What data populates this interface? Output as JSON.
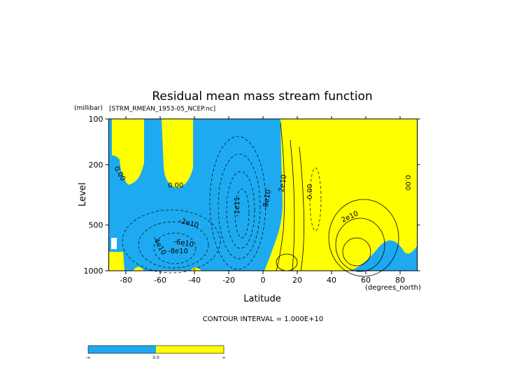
{
  "chart_data": {
    "type": "contour",
    "title": "Residual mean mass stream function",
    "subtitle": "[STRM_RMEAN_1953-05_NCEP.nc]",
    "y_unit": "(millibar)",
    "x_unit": "(degrees_north)",
    "xlabel": "Latitude",
    "ylabel": "Level",
    "xlim": [
      -90,
      90
    ],
    "xticks": [
      -80,
      -60,
      -40,
      -20,
      0,
      20,
      40,
      60,
      80
    ],
    "ylim": [
      1000,
      100
    ],
    "yticks": [
      100,
      200,
      500,
      1000
    ],
    "y_log": true,
    "negative_color": "#1eaaf1",
    "positive_color": "#ffff00",
    "contour_labels": [
      "0.00",
      "0.00",
      "-2e10",
      "-4e10",
      "-6e10",
      "-8e10",
      "-1e11",
      "-8e10",
      "2e10",
      "0.00",
      "2e10",
      "0.00"
    ],
    "contour_interval": "CONTOUR INTERVAL = 1.000E+10",
    "colorbar_labels": [
      "-∞",
      "0.0",
      "∞"
    ]
  }
}
